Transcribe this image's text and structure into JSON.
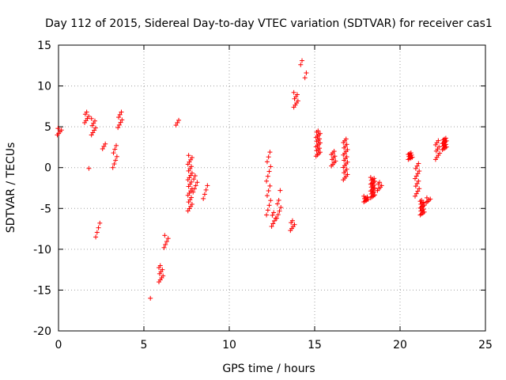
{
  "chart_data": {
    "type": "scatter",
    "title": "Day 112 of 2015, Sidereal Day-to-day VTEC variation (SDTVAR) for receiver cas1",
    "xlabel": "GPS time / hours",
    "ylabel": "SDTVAR / TECUs",
    "xlim": [
      0,
      25
    ],
    "ylim": [
      -20,
      15
    ],
    "x_ticks": [
      0,
      5,
      10,
      15,
      20,
      25
    ],
    "y_ticks": [
      -20,
      -15,
      -10,
      -5,
      0,
      5,
      10,
      15
    ],
    "x_tick_labels": [
      "0",
      "5",
      "10",
      "15",
      "20",
      "25"
    ],
    "y_tick_labels": [
      "-20",
      "-15",
      "-10",
      "-5",
      "0",
      "5",
      "10",
      "15"
    ],
    "grid": true,
    "marker": "+",
    "marker_color": "#ff0000",
    "series": [
      {
        "name": "SDTVAR",
        "clusters": [
          {
            "x": 0.05,
            "y_min": 4.0,
            "y_max": 4.8,
            "n": 5
          },
          {
            "x": 1.65,
            "y_min": 5.5,
            "y_max": 6.8,
            "n": 6
          },
          {
            "x": 1.9,
            "y_min": -0.1,
            "y_max": -0.1,
            "n": 1
          },
          {
            "x": 2.05,
            "y_min": 4.0,
            "y_max": 6.0,
            "n": 8
          },
          {
            "x": 2.3,
            "y_min": -8.5,
            "y_max": -6.8,
            "n": 4
          },
          {
            "x": 2.7,
            "y_min": 2.3,
            "y_max": 2.9,
            "n": 3
          },
          {
            "x": 3.3,
            "y_min": 0.0,
            "y_max": 2.7,
            "n": 7
          },
          {
            "x": 3.6,
            "y_min": 4.9,
            "y_max": 6.8,
            "n": 7
          },
          {
            "x": 5.5,
            "y_min": -16.0,
            "y_max": -16.0,
            "n": 1
          },
          {
            "x": 6.0,
            "y_min": -14.0,
            "y_max": -12.0,
            "n": 9
          },
          {
            "x": 6.3,
            "y_min": -9.8,
            "y_max": -8.3,
            "n": 5
          },
          {
            "x": 7.0,
            "y_min": 5.2,
            "y_max": 5.8,
            "n": 3
          },
          {
            "x": 7.7,
            "y_min": -5.3,
            "y_max": 1.5,
            "n": 26
          },
          {
            "x": 8.0,
            "y_min": -3.0,
            "y_max": -1.0,
            "n": 6
          },
          {
            "x": 8.6,
            "y_min": -3.8,
            "y_max": -2.2,
            "n": 4
          },
          {
            "x": 12.3,
            "y_min": -5.8,
            "y_max": 1.9,
            "n": 14
          },
          {
            "x": 12.6,
            "y_min": -7.2,
            "y_max": -5.5,
            "n": 6
          },
          {
            "x": 12.9,
            "y_min": -6.2,
            "y_max": -4.0,
            "n": 6
          },
          {
            "x": 13.1,
            "y_min": -2.8,
            "y_max": -2.8,
            "n": 1
          },
          {
            "x": 13.7,
            "y_min": -7.7,
            "y_max": -6.5,
            "n": 6
          },
          {
            "x": 13.9,
            "y_min": 7.4,
            "y_max": 9.2,
            "n": 8
          },
          {
            "x": 14.3,
            "y_min": 12.6,
            "y_max": 13.1,
            "n": 2
          },
          {
            "x": 14.55,
            "y_min": 11.0,
            "y_max": 11.6,
            "n": 2
          },
          {
            "x": 15.2,
            "y_min": 1.4,
            "y_max": 4.5,
            "n": 20
          },
          {
            "x": 16.1,
            "y_min": 0.2,
            "y_max": 2.0,
            "n": 10
          },
          {
            "x": 16.8,
            "y_min": -1.5,
            "y_max": 3.5,
            "n": 24
          },
          {
            "x": 18.0,
            "y_min": -4.2,
            "y_max": -3.5,
            "n": 8
          },
          {
            "x": 18.4,
            "y_min": -3.7,
            "y_max": -1.2,
            "n": 22
          },
          {
            "x": 18.8,
            "y_min": -2.8,
            "y_max": -1.8,
            "n": 6
          },
          {
            "x": 20.6,
            "y_min": 1.0,
            "y_max": 1.8,
            "n": 10
          },
          {
            "x": 21.0,
            "y_min": -3.5,
            "y_max": 0.5,
            "n": 14
          },
          {
            "x": 21.3,
            "y_min": -5.8,
            "y_max": -4.0,
            "n": 16
          },
          {
            "x": 21.65,
            "y_min": -4.3,
            "y_max": -3.7,
            "n": 5
          },
          {
            "x": 22.2,
            "y_min": 1.0,
            "y_max": 3.3,
            "n": 10
          },
          {
            "x": 22.6,
            "y_min": 2.2,
            "y_max": 3.6,
            "n": 14
          }
        ]
      }
    ]
  }
}
